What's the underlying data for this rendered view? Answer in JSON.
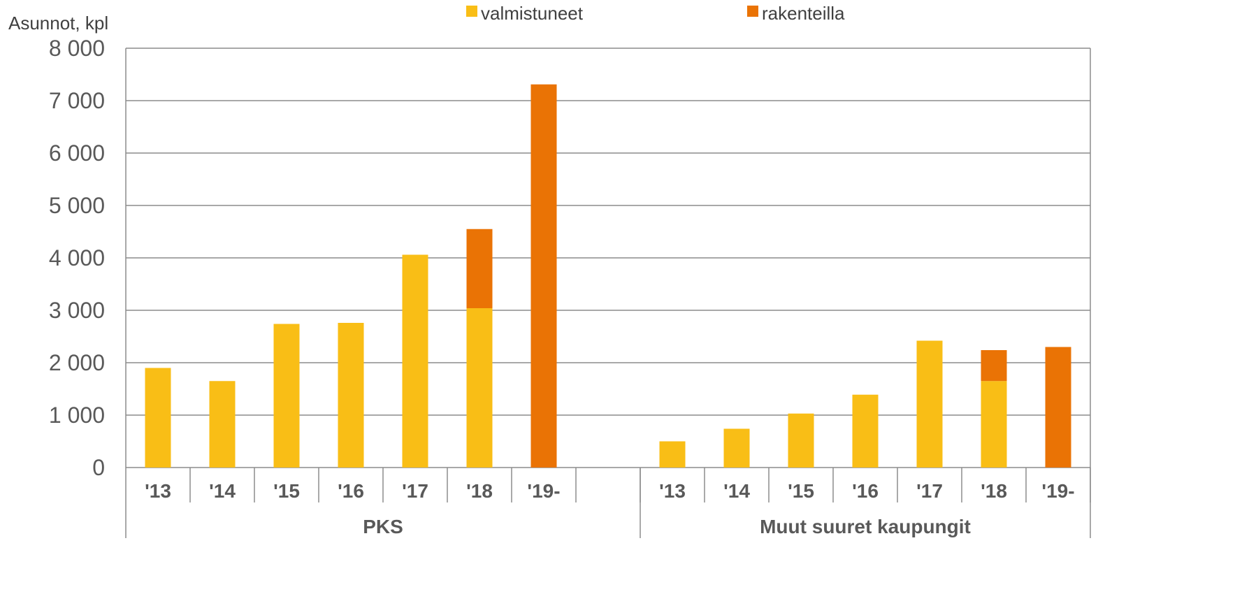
{
  "chart_data": {
    "type": "bar",
    "stacked": true,
    "ylabel": "Asunnot, kpl",
    "ylim": [
      0,
      8000
    ],
    "y_ticks": [
      0,
      1000,
      2000,
      3000,
      4000,
      5000,
      6000,
      7000,
      8000
    ],
    "y_tick_labels": [
      "0",
      "1 000",
      "2 000",
      "3 000",
      "4 000",
      "5 000",
      "6 000",
      "7 000",
      "8 000"
    ],
    "grid": true,
    "legend_position": "top",
    "groups": [
      {
        "name": "PKS",
        "categories": [
          "'13",
          "'14",
          "'15",
          "'16",
          "'17",
          "'18",
          "'19-",
          ""
        ],
        "series": [
          {
            "name": "valmistuneet",
            "values": [
              1900,
              1650,
              2740,
              2760,
              4060,
              3040,
              0,
              0
            ]
          },
          {
            "name": "rakenteilla",
            "values": [
              0,
              0,
              0,
              0,
              0,
              1510,
              7310,
              0
            ]
          }
        ]
      },
      {
        "name": "Muut suuret kaupungit",
        "categories": [
          "'13",
          "'14",
          "'15",
          "'16",
          "'17",
          "'18",
          "'19-"
        ],
        "series": [
          {
            "name": "valmistuneet",
            "values": [
              500,
              740,
              1030,
              1390,
              2420,
              1650,
              0
            ]
          },
          {
            "name": "rakenteilla",
            "values": [
              0,
              0,
              0,
              0,
              0,
              590,
              2300
            ]
          }
        ]
      }
    ],
    "legend": [
      {
        "name": "valmistuneet",
        "color": "#F9BE16"
      },
      {
        "name": "rakenteilla",
        "color": "#EA7305"
      }
    ],
    "colors": {
      "valmistuneet": "#F9BE16",
      "rakenteilla": "#EA7305",
      "grid": "#8c8c8c",
      "text": "#595959"
    }
  }
}
